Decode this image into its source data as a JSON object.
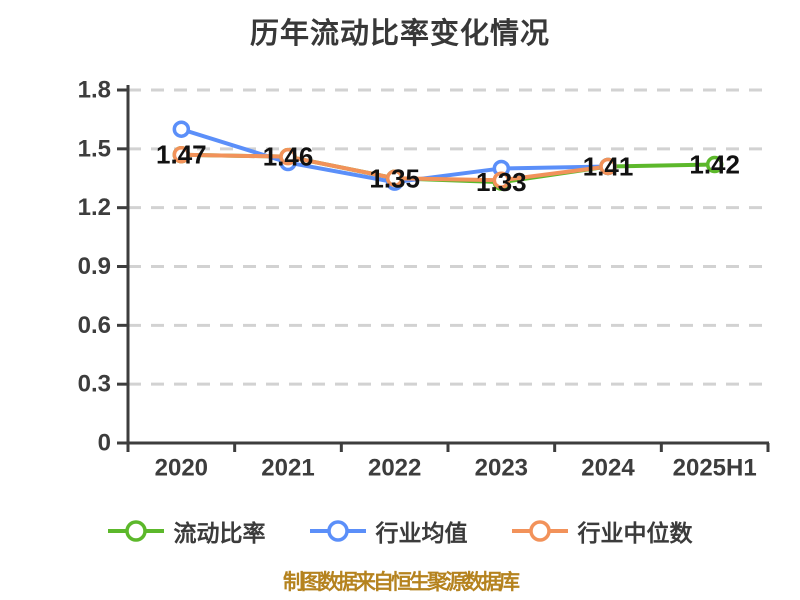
{
  "title": "历年流动比率变化情况",
  "footer": "制图数据来自恒生聚源数据库",
  "chart_data": {
    "type": "line",
    "title": "历年流动比率变化情况",
    "categories": [
      "2020",
      "2021",
      "2022",
      "2023",
      "2024",
      "2025H1"
    ],
    "series": [
      {
        "name": "流动比率",
        "color": "#5cb82b",
        "values": [
          1.47,
          1.46,
          1.35,
          1.33,
          1.41,
          1.42
        ],
        "labels": [
          "1.47",
          "1.46",
          "1.35",
          "1.33",
          "1.41",
          "1.42"
        ],
        "show_labels": true
      },
      {
        "name": "行业均值",
        "color": "#5b8ff9",
        "values": [
          1.6,
          1.43,
          1.33,
          1.4,
          1.41,
          null
        ],
        "labels": [],
        "show_labels": false
      },
      {
        "name": "行业中位数",
        "color": "#f2925a",
        "values": [
          1.47,
          1.46,
          1.35,
          1.34,
          1.41,
          null
        ],
        "labels": [],
        "show_labels": false
      }
    ],
    "ylim": [
      0,
      1.8
    ],
    "yticks": [
      "0",
      "0.3",
      "0.6",
      "0.9",
      "1.2",
      "1.5",
      "1.8"
    ],
    "grid": "dashed horizontal",
    "legend_position": "bottom",
    "marker": "white-filled circle with colored ring",
    "colors": {
      "axis": "#3d3d3d",
      "grid": "#d2d2d2",
      "tick_text": "#3d3d3d",
      "data_label": "#111111",
      "footer_text": "#b5831f",
      "title_text": "#383838"
    }
  }
}
